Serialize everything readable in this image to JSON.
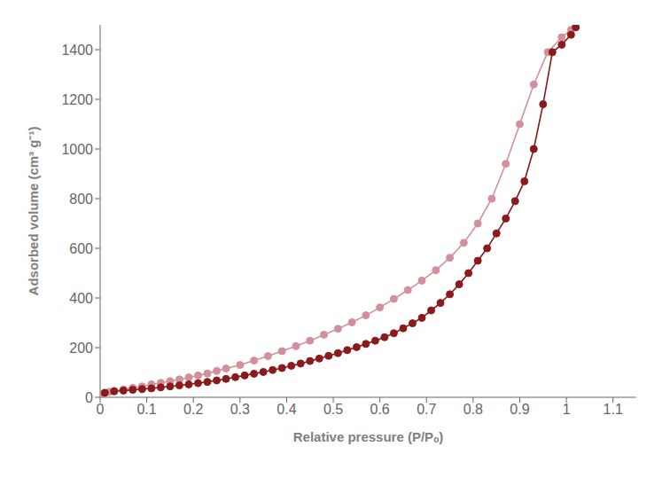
{
  "chart_data": {
    "type": "line",
    "xlabel": "Relative pressure (P/Pₒ)",
    "ylabel": "Adsorbed volume (cm³ g⁻¹)",
    "xlim": [
      0,
      1.15
    ],
    "ylim": [
      0,
      1500
    ],
    "xticks": [
      0,
      0.1,
      0.2,
      0.3,
      0.4,
      0.5,
      0.6,
      0.7,
      0.8,
      0.9,
      1,
      1.1
    ],
    "yticks": [
      0,
      200,
      400,
      600,
      800,
      1000,
      1200,
      1400
    ],
    "grid": false,
    "series": [
      {
        "color": "#d4909a",
        "marker": "circle",
        "x": [
          0.003,
          0.01,
          0.02,
          0.03,
          0.05,
          0.07,
          0.09,
          0.11,
          0.13,
          0.15,
          0.17,
          0.19,
          0.21,
          0.23,
          0.25,
          0.27,
          0.3,
          0.33,
          0.36,
          0.39,
          0.42,
          0.45,
          0.48,
          0.51,
          0.54,
          0.57,
          0.6,
          0.63,
          0.66,
          0.69,
          0.72,
          0.75,
          0.78,
          0.81,
          0.84,
          0.87,
          0.9,
          0.93,
          0.96,
          0.99,
          1.01,
          1.02
        ],
        "values": [
          12,
          18,
          22,
          26,
          32,
          38,
          44,
          52,
          58,
          65,
          72,
          80,
          88,
          96,
          106,
          116,
          130,
          148,
          166,
          186,
          206,
          228,
          252,
          276,
          302,
          330,
          362,
          396,
          432,
          470,
          512,
          562,
          622,
          700,
          800,
          940,
          1100,
          1260,
          1390,
          1450,
          1480,
          1490
        ]
      },
      {
        "color": "#8b1a1a",
        "marker": "circle",
        "x": [
          1.02,
          1.01,
          0.99,
          0.97,
          0.95,
          0.93,
          0.91,
          0.89,
          0.87,
          0.85,
          0.83,
          0.81,
          0.79,
          0.77,
          0.75,
          0.73,
          0.71,
          0.69,
          0.67,
          0.65,
          0.63,
          0.61,
          0.59,
          0.57,
          0.55,
          0.53,
          0.51,
          0.49,
          0.47,
          0.45,
          0.43,
          0.41,
          0.39,
          0.37,
          0.35,
          0.33,
          0.31,
          0.29,
          0.27,
          0.25,
          0.23,
          0.21,
          0.19,
          0.17,
          0.15,
          0.13,
          0.11,
          0.09,
          0.07,
          0.05,
          0.03,
          0.01
        ],
        "values": [
          1490,
          1460,
          1420,
          1390,
          1180,
          1000,
          870,
          790,
          720,
          660,
          600,
          550,
          500,
          455,
          415,
          380,
          350,
          320,
          298,
          278,
          258,
          242,
          228,
          215,
          202,
          190,
          178,
          167,
          156,
          146,
          136,
          127,
          118,
          110,
          102,
          95,
          88,
          81,
          74,
          68,
          62,
          57,
          52,
          48,
          44,
          40,
          36,
          33,
          30,
          27,
          24,
          18
        ]
      }
    ]
  }
}
